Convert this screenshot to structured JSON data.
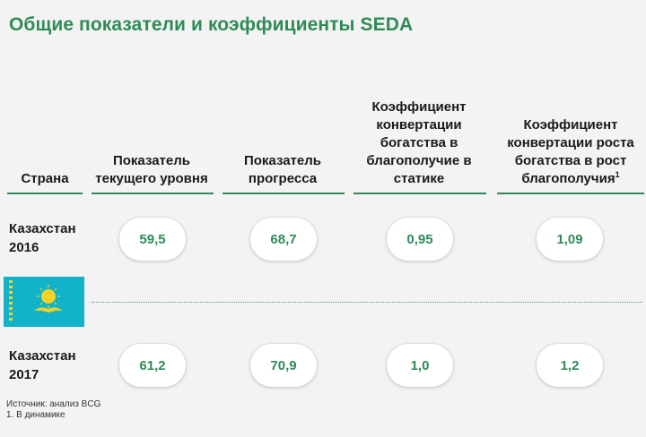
{
  "title": "Общие показатели и коэффициенты SEDA",
  "headers": {
    "country": "Страна",
    "current_level": "Показатель текущего уровня",
    "progress": "Показатель прогресса",
    "static_conversion": "Коэффициент конвертации богатства в благополучие в статике",
    "growth_conversion": "Коэффициент конвертации роста богатства в рост благополучия",
    "growth_conversion_footnote_mark": "1"
  },
  "rows": [
    {
      "country": "Казахстан 2016",
      "current_level": "59,5",
      "progress": "68,7",
      "static_conversion": "0,95",
      "growth_conversion": "1,09"
    },
    {
      "country": "Казахстан 2017",
      "current_level": "61,2",
      "progress": "70,9",
      "static_conversion": "1,0",
      "growth_conversion": "1,2"
    }
  ],
  "flag": {
    "country": "Kazakhstan",
    "background_color": "#12b3c8",
    "emblem_color": "#f5d224"
  },
  "footer": {
    "source": "Источник: анализ BCG",
    "note": "1. В динамике"
  },
  "colors": {
    "accent": "#2e8b57",
    "background": "#f3f3f3"
  }
}
